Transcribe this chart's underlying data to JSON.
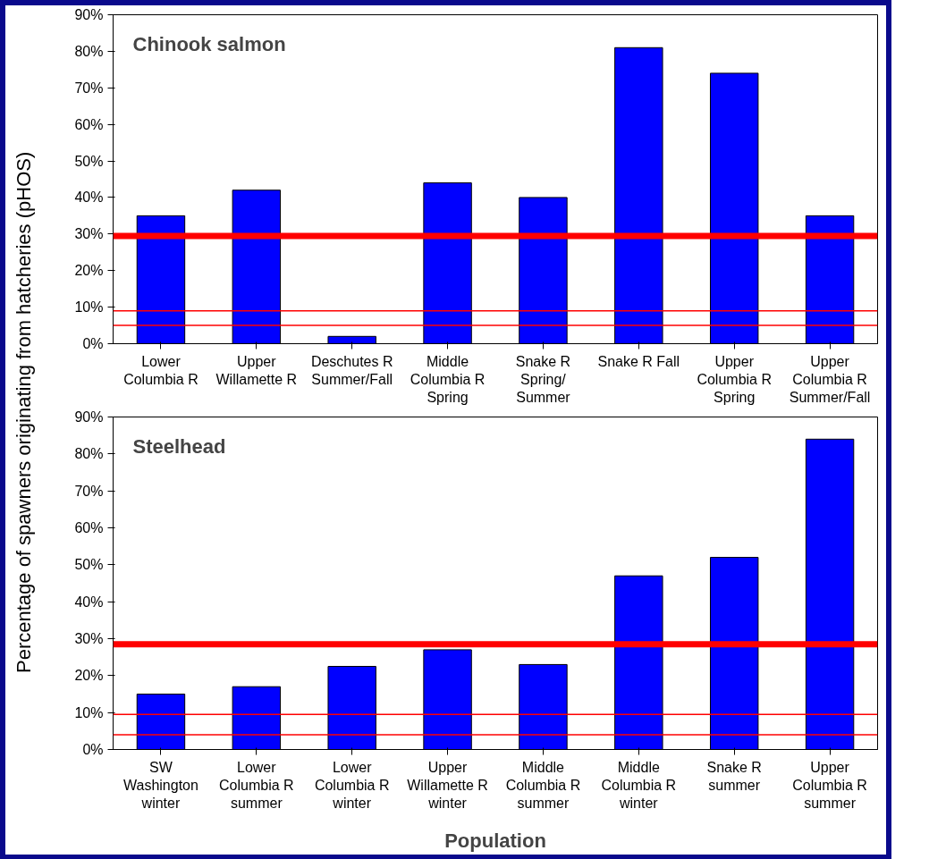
{
  "chart_data": [
    {
      "type": "bar",
      "title": "Chinook salmon",
      "ylabel": "Percentage of spawners originating from hatcheries (pHOS)",
      "categories": [
        "Lower Columbia R",
        "Upper Willamette R",
        "Deschutes R Summer/Fall",
        "Middle Columbia R Spring",
        "Snake R Spring/ Summer",
        "Snake R Fall",
        "Upper Columbia R Spring",
        "Upper Columbia R Summer/Fall"
      ],
      "values": [
        35,
        42,
        2,
        44,
        40,
        81,
        74,
        35
      ],
      "color": "#0000ff",
      "ylim": [
        0,
        90
      ],
      "yticks": [
        {
          "value": 0,
          "label": "0%"
        },
        {
          "value": 10,
          "label": "10%"
        },
        {
          "value": 20,
          "label": "20%"
        },
        {
          "value": 30,
          "label": "30%"
        },
        {
          "value": 40,
          "label": "40%"
        },
        {
          "value": 50,
          "label": "50%"
        },
        {
          "value": 60,
          "label": "60%"
        },
        {
          "value": 70,
          "label": "70%"
        },
        {
          "value": 80,
          "label": "80%"
        },
        {
          "value": 90,
          "label": "90%"
        }
      ],
      "ref_lines": [
        {
          "axis": "y",
          "value": 29.5,
          "color": "#ff0000"
        },
        {
          "axis": "y",
          "value": 9,
          "color": "#ff0000"
        },
        {
          "axis": "y",
          "value": 5,
          "color": "#ff0000"
        }
      ],
      "grid": false
    },
    {
      "type": "bar",
      "title": "Steelhead",
      "xlabel": "Population",
      "categories": [
        "SW Washington winter",
        "Lower Columbia R summer",
        "Lower Columbia R winter",
        "Upper Willamette R winter",
        "Middle Columbia R summer",
        "Middle Columbia R winter",
        "Snake R summer",
        "Upper Columbia R summer"
      ],
      "values": [
        15,
        17,
        22.5,
        27,
        23,
        47,
        52,
        84
      ],
      "color": "#0000ff",
      "ylim": [
        0,
        90
      ],
      "yticks": [
        {
          "value": 0,
          "label": "0%"
        },
        {
          "value": 10,
          "label": "10%"
        },
        {
          "value": 20,
          "label": "20%"
        },
        {
          "value": 30,
          "label": "30%"
        },
        {
          "value": 40,
          "label": "40%"
        },
        {
          "value": 50,
          "label": "50%"
        },
        {
          "value": 60,
          "label": "60%"
        },
        {
          "value": 70,
          "label": "70%"
        },
        {
          "value": 80,
          "label": "80%"
        },
        {
          "value": 90,
          "label": "90%"
        }
      ],
      "ref_lines": [
        {
          "axis": "y",
          "value": 28.5,
          "color": "#ff0000"
        },
        {
          "axis": "y",
          "value": 9.5,
          "color": "#ff0000"
        },
        {
          "axis": "y",
          "value": 4,
          "color": "#ff0000"
        }
      ],
      "grid": false
    }
  ]
}
